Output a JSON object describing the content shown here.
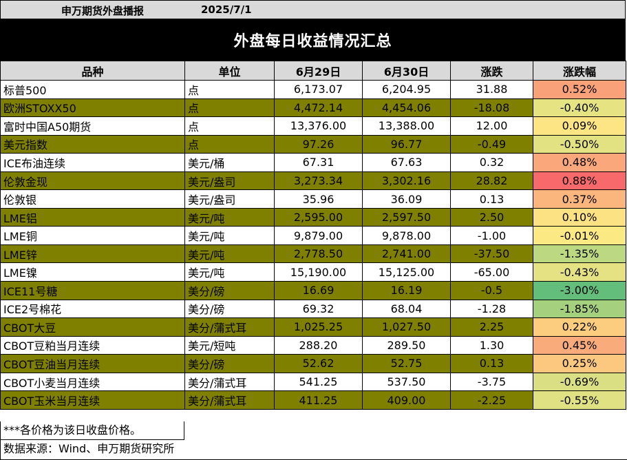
{
  "header": {
    "company": "申万期货外盘播报",
    "date": "2025/7/1",
    "title": "外盘每日收益情况汇总"
  },
  "table": {
    "columns": [
      "品种",
      "单位",
      "6月29日",
      "6月30日",
      "涨跌",
      "涨跌幅"
    ],
    "rows": [
      {
        "name": "标普500",
        "unit": "点",
        "d1": "6,173.07",
        "d2": "6,204.95",
        "chg": "31.88",
        "pct": "0.52%",
        "color": "#f9a27a"
      },
      {
        "name": "欧洲STOXX50",
        "unit": "点",
        "d1": "4,472.14",
        "d2": "4,454.06",
        "chg": "-18.08",
        "pct": "-0.40%",
        "color": "#e6e383"
      },
      {
        "name": "富时中国A50期货",
        "unit": "点",
        "d1": "13,376.00",
        "d2": "13,388.00",
        "chg": "12.00",
        "pct": "0.09%",
        "color": "#fde584"
      },
      {
        "name": "美元指数",
        "unit": "点",
        "d1": "97.26",
        "d2": "96.77",
        "chg": "-0.49",
        "pct": "-0.50%",
        "color": "#e2e283"
      },
      {
        "name": "ICE布油连续",
        "unit": "美元/桶",
        "d1": "67.31",
        "d2": "67.63",
        "chg": "0.32",
        "pct": "0.48%",
        "color": "#faa87b"
      },
      {
        "name": "伦敦金现",
        "unit": "美元/盎司",
        "d1": "3,273.34",
        "d2": "3,302.16",
        "chg": "28.82",
        "pct": "0.88%",
        "color": "#f8696b"
      },
      {
        "name": "伦敦银",
        "unit": "美元/盎司",
        "d1": "35.96",
        "d2": "36.09",
        "chg": "0.13",
        "pct": "0.37%",
        "color": "#fbb67d"
      },
      {
        "name": "LME铝",
        "unit": "美元/吨",
        "d1": "2,595.00",
        "d2": "2,597.50",
        "chg": "2.50",
        "pct": "0.10%",
        "color": "#fde283"
      },
      {
        "name": "LME铜",
        "unit": "美元/吨",
        "d1": "9,879.00",
        "d2": "9,878.00",
        "chg": "-1.00",
        "pct": "-0.01%",
        "color": "#fbe983"
      },
      {
        "name": "LME锌",
        "unit": "美元/吨",
        "d1": "2,778.50",
        "d2": "2,741.00",
        "chg": "-37.50",
        "pct": "-1.35%",
        "color": "#bcd881"
      },
      {
        "name": "LME镍",
        "unit": "美元/吨",
        "d1": "15,190.00",
        "d2": "15,125.00",
        "chg": "-65.00",
        "pct": "-0.43%",
        "color": "#e4e283"
      },
      {
        "name": "ICE11号糖",
        "unit": "美分/磅",
        "d1": "16.69",
        "d2": "16.19",
        "chg": "-0.5",
        "pct": "-3.00%",
        "color": "#63be7b"
      },
      {
        "name": "ICE2号棉花",
        "unit": "美分/磅",
        "d1": "69.32",
        "d2": "68.04",
        "chg": "-1.28",
        "pct": "-1.85%",
        "color": "#a5d17e"
      },
      {
        "name": "CBOT大豆",
        "unit": "美分/蒲式耳",
        "d1": "1,025.25",
        "d2": "1,027.50",
        "chg": "2.25",
        "pct": "0.22%",
        "color": "#fccd7f"
      },
      {
        "name": "CBOT豆粕当月连续",
        "unit": "美元/短吨",
        "d1": "288.20",
        "d2": "289.50",
        "chg": "1.30",
        "pct": "0.45%",
        "color": "#faab7c"
      },
      {
        "name": "CBOT豆油当月连续",
        "unit": "美分/磅",
        "d1": "52.62",
        "d2": "52.75",
        "chg": "0.13",
        "pct": "0.25%",
        "color": "#fcc87f"
      },
      {
        "name": "CBOT小麦当月连续",
        "unit": "美分/蒲式耳",
        "d1": "541.25",
        "d2": "537.50",
        "chg": "-3.75",
        "pct": "-0.69%",
        "color": "#d9df82"
      },
      {
        "name": "CBOT玉米当月连续",
        "unit": "美分/蒲式耳",
        "d1": "411.25",
        "d2": "409.00",
        "chg": "-2.25",
        "pct": "-0.55%",
        "color": "#e0e183"
      }
    ]
  },
  "footer": {
    "note": "***各价格为该日收盘价格。",
    "source": "数据来源：Wind、申万期货研究所"
  }
}
